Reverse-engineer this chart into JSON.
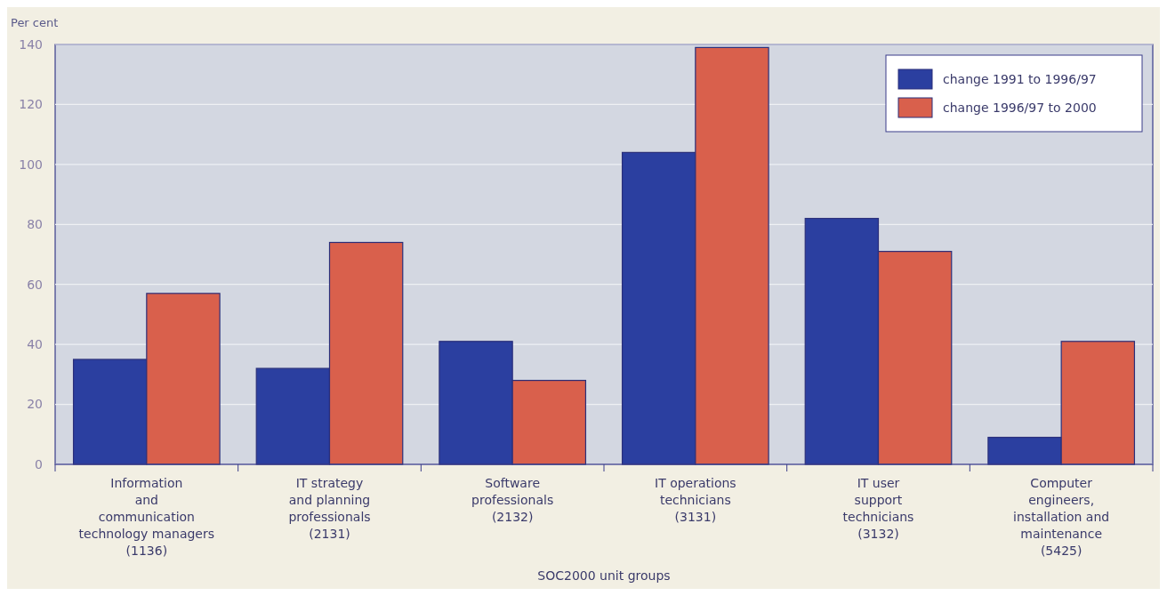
{
  "chart_data": {
    "type": "bar",
    "ylabel": "Per cent",
    "xlabel": "SOC2000 unit groups",
    "categories": [
      "Information\nand\ncommunication\ntechnology managers\n(1136)",
      "IT strategy\nand planning\nprofessionals\n(2131)",
      "Software\nprofessionals\n(2132)",
      "IT operations\ntechnicians\n(3131)",
      "IT user\nsupport\ntechnicians\n(3132)",
      "Computer\nengineers,\ninstallation and\nmaintenance\n(5425)"
    ],
    "series": [
      {
        "name": "change 1991 to 1996/97",
        "color": "#2b3fa0",
        "values": [
          35,
          32,
          41,
          104,
          82,
          9
        ]
      },
      {
        "name": "change 1996/97 to 2000",
        "color": "#d9604c",
        "values": [
          57,
          74,
          28,
          139,
          71,
          41
        ]
      }
    ],
    "ylim": [
      0,
      140
    ],
    "yticks": [
      0,
      20,
      40,
      60,
      80,
      100,
      120,
      140
    ],
    "grid": "y",
    "legend": "top right"
  }
}
